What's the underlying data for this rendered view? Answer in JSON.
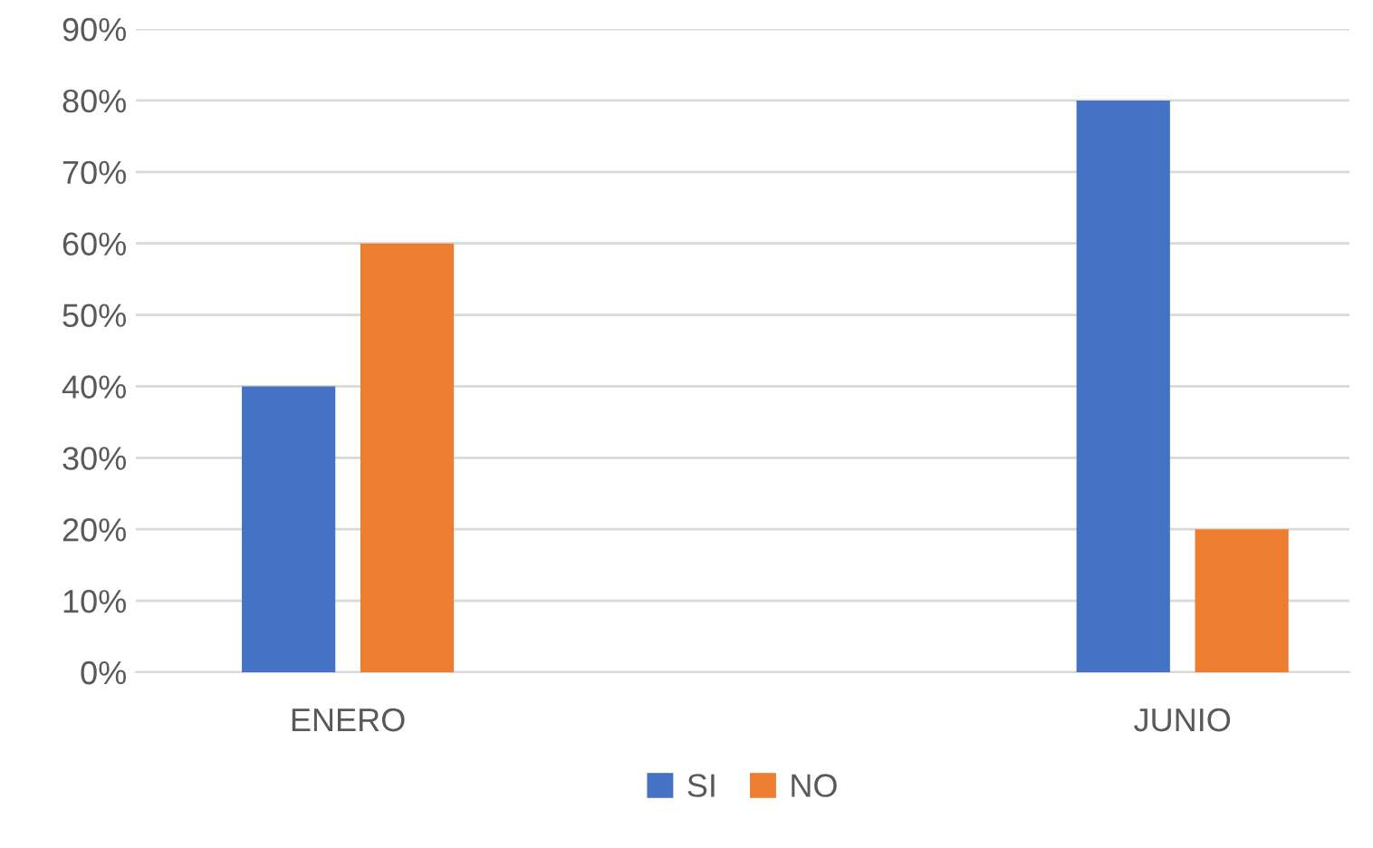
{
  "chart_data": {
    "type": "bar",
    "categories": [
      "ENERO",
      "JUNIO"
    ],
    "series": [
      {
        "name": "SI",
        "color": "#4472c4",
        "values": [
          40,
          80
        ]
      },
      {
        "name": "NO",
        "color": "#ed7d31",
        "values": [
          60,
          20
        ]
      }
    ],
    "ylim": [
      0,
      90
    ],
    "yticks": [
      {
        "value": 0,
        "label": "0%"
      },
      {
        "value": 10,
        "label": "10%"
      },
      {
        "value": 20,
        "label": "20%"
      },
      {
        "value": 30,
        "label": "30%"
      },
      {
        "value": 40,
        "label": "40%"
      },
      {
        "value": 50,
        "label": "50%"
      },
      {
        "value": 60,
        "label": "60%"
      },
      {
        "value": 70,
        "label": "70%"
      },
      {
        "value": 80,
        "label": "80%"
      },
      {
        "value": 90,
        "label": "90%"
      }
    ],
    "grid": "y",
    "legend": "bottom"
  }
}
